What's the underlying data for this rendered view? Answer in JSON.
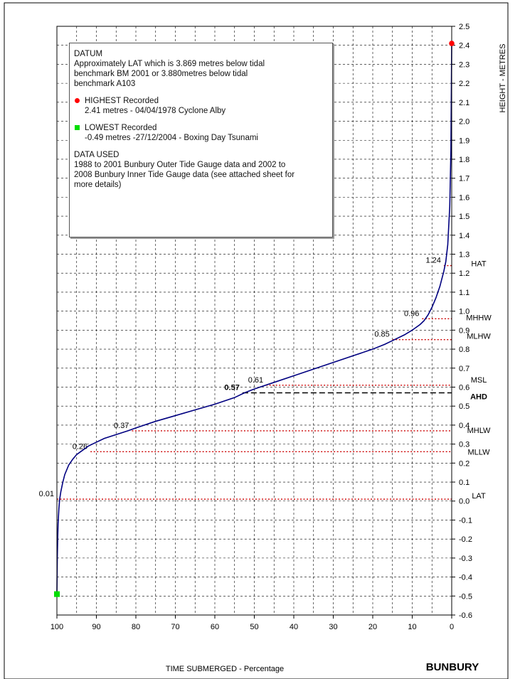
{
  "colors": {
    "curve": "#000080",
    "datum_lines": "#cc0000",
    "ahd_line": "#000000",
    "grid": "#000000",
    "highest_marker": "#ff0000",
    "lowest_marker": "#00dd00"
  },
  "legend": {
    "datum_title": "DATUM",
    "datum_lines": [
      "Approximately LAT which is 3.869 metres below tidal",
      " benchmark BM 2001 or 3.880metres below tidal",
      "benchmark A103"
    ],
    "highest_title": "HIGHEST Recorded",
    "highest_detail": "2.41 metres - 04/04/1978 Cyclone Alby",
    "lowest_title": "LOWEST Recorded",
    "lowest_detail": "-0.49 metres -27/12/2004 - Boxing Day Tsunami",
    "data_title": "DATA USED",
    "data_lines": [
      "1988 to 2001 Bunbury Outer Tide Gauge data and 2002 to",
      "2008 Bunbury Inner Tide Gauge data (see attached sheet for",
      "more details)"
    ]
  },
  "chart_data": {
    "type": "line",
    "title": "BUNBURY",
    "xlabel": "TIME  SUBMERGED - Percentage",
    "ylabel": "HEIGHT - METRES",
    "xlim": [
      100,
      0
    ],
    "ylim": [
      -0.6,
      2.5
    ],
    "x_ticks": [
      100,
      90,
      80,
      70,
      60,
      50,
      40,
      30,
      20,
      10,
      0
    ],
    "y_ticks": [
      "2.5",
      "2.4",
      "2.3",
      "2.2",
      "2.1",
      "2.0",
      "1.9",
      "1.8",
      "1.7",
      "1.6",
      "1.5",
      "1.4",
      "1.3",
      "1.2",
      "1.1",
      "1.0",
      "0.9",
      "0.8",
      "0.7",
      "0.6",
      "0.5",
      "0.4",
      "0.3",
      "0.2",
      "0.1",
      "0.0",
      "-0.1",
      "-0.2",
      "-0.3",
      "-0.4",
      "-0.5",
      "-0.6"
    ],
    "x_grid_step": 5,
    "y_grid_step": 0.1,
    "grid": true,
    "series": [
      {
        "x": [
          100,
          99.9,
          99.8,
          99.7,
          99.5,
          99.3,
          99,
          98.5,
          98,
          97,
          96,
          95,
          94,
          93,
          92,
          90,
          88,
          85,
          82,
          80,
          75,
          70,
          65,
          60,
          55,
          52.5,
          50,
          45,
          40,
          35,
          30,
          25,
          20,
          17,
          15,
          12,
          10,
          8,
          7,
          6,
          5,
          4,
          3,
          2,
          1.5,
          1,
          0.5,
          0.2,
          0
        ],
        "y": [
          -0.49,
          -0.3,
          -0.2,
          -0.12,
          -0.04,
          0.01,
          0.05,
          0.1,
          0.14,
          0.19,
          0.22,
          0.245,
          0.26,
          0.275,
          0.29,
          0.31,
          0.33,
          0.35,
          0.37,
          0.385,
          0.42,
          0.45,
          0.48,
          0.51,
          0.545,
          0.57,
          0.59,
          0.625,
          0.66,
          0.695,
          0.73,
          0.765,
          0.8,
          0.825,
          0.845,
          0.875,
          0.9,
          0.93,
          0.95,
          0.98,
          1.02,
          1.07,
          1.13,
          1.21,
          1.26,
          1.35,
          1.55,
          1.85,
          2.41
        ]
      }
    ],
    "datum_levels": [
      {
        "name": "HAT",
        "value": 1.24,
        "label": "1.24",
        "x_start": 2
      },
      {
        "name": "MHHW",
        "value": 0.96,
        "label": "0.96",
        "x_start": 7.5
      },
      {
        "name": "MLHW",
        "value": 0.85,
        "label": "0.85",
        "x_start": 15
      },
      {
        "name": "MSL",
        "value": 0.61,
        "label": "0.61",
        "x_start": 47
      },
      {
        "name": "AHD",
        "value": 0.57,
        "label": "0.57",
        "x_start": 53
      },
      {
        "name": "MHLW",
        "value": 0.37,
        "label": "0.37",
        "x_start": 81
      },
      {
        "name": "MLLW",
        "value": 0.26,
        "label": "0.26",
        "x_start": 91.5
      },
      {
        "name": "LAT",
        "value": 0.01,
        "label": "0.01",
        "x_start": 100
      }
    ],
    "highest": {
      "x": 0,
      "y": 2.41
    },
    "lowest": {
      "x": 100,
      "y": -0.49
    }
  }
}
